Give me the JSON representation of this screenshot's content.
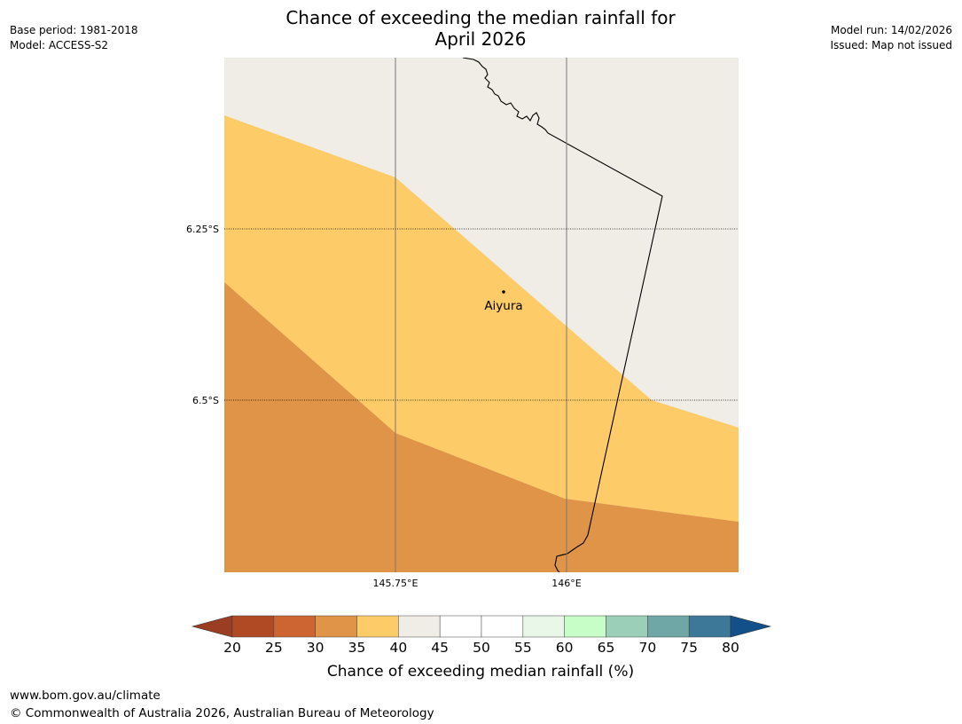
{
  "header": {
    "title_line1": "Chance of exceeding the median rainfall for",
    "title_line2": "April 2026",
    "base_period": "Base period: 1981-2018",
    "model": "Model: ACCESS-S2",
    "model_run": "Model run: 14/02/2026",
    "issued": "Issued: Map not issued"
  },
  "map": {
    "background_color": "#f0ece6",
    "gridlines": {
      "latitudes": [
        {
          "value": -6.25,
          "label": "6.25°S"
        },
        {
          "value": -6.5,
          "label": "6.5°S"
        }
      ],
      "longitudes": [
        {
          "value": 145.75,
          "label": "145.75°E"
        },
        {
          "value": 146.0,
          "label": "146°E"
        }
      ]
    },
    "zones": [
      {
        "category": "40-45",
        "color": "#f0ece6"
      },
      {
        "category": "35-40",
        "color": "#fdcb67"
      },
      {
        "category": "30-35",
        "color": "#e09447"
      }
    ],
    "place": {
      "name": "Aiyura",
      "lon": 145.9,
      "lat": -6.35
    }
  },
  "colorbar": {
    "ticks": [
      "20",
      "25",
      "30",
      "35",
      "40",
      "45",
      "50",
      "55",
      "60",
      "65",
      "70",
      "75",
      "80"
    ],
    "colors": [
      "#b04a25",
      "#cc6532",
      "#e09447",
      "#fdcb67",
      "#f0ece6",
      "#ffffff",
      "#ffffff",
      "#e8f7e8",
      "#c7fdc7",
      "#9bcfb8",
      "#6fa6a6",
      "#3e7898"
    ],
    "under_color": "#9a3d22",
    "over_color": "#13508a",
    "label": "Chance of exceeding median rainfall (%)"
  },
  "footer": {
    "url": "www.bom.gov.au/climate",
    "copyright": "© Commonwealth of Australia 2026, Australian Bureau of Meteorology"
  }
}
